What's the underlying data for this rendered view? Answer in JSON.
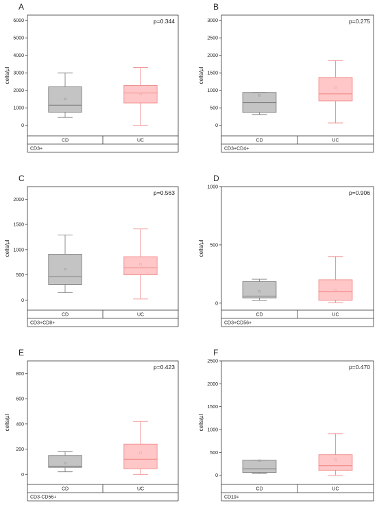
{
  "chart_data": [
    {
      "panel": "A",
      "type": "box",
      "ylabel": "cells/µl",
      "ylim": [
        -600,
        6300
      ],
      "yticks": [
        0,
        1000,
        2000,
        3000,
        4000,
        5000,
        6000
      ],
      "pvalue": "p=0.344",
      "group": "CD3+",
      "categories": [
        "CD",
        "UC"
      ],
      "boxes": [
        {
          "category": "CD",
          "min": 450,
          "q1": 750,
          "median": 1150,
          "q3": 2200,
          "max": 3000,
          "mean": 1500
        },
        {
          "category": "UC",
          "min": 0,
          "q1": 1280,
          "median": 1850,
          "q3": 2280,
          "max": 3300,
          "mean": 1800
        }
      ]
    },
    {
      "panel": "B",
      "type": "box",
      "ylabel": "cells/µl",
      "ylim": [
        -300,
        3150
      ],
      "yticks": [
        0,
        500,
        1000,
        1500,
        2000,
        2500,
        3000
      ],
      "pvalue": "p=0.275",
      "group": "CD3+CD4+",
      "categories": [
        "CD",
        "UC"
      ],
      "boxes": [
        {
          "category": "CD",
          "min": 310,
          "q1": 370,
          "median": 650,
          "q3": 940,
          "max": 940,
          "mean": 860
        },
        {
          "category": "UC",
          "min": 70,
          "q1": 700,
          "median": 900,
          "q3": 1370,
          "max": 1850,
          "mean": 1080
        }
      ]
    },
    {
      "panel": "C",
      "type": "box",
      "ylabel": "cells/µl",
      "ylim": [
        -200,
        2250
      ],
      "yticks": [
        0,
        500,
        1000,
        1500,
        2000
      ],
      "pvalue": "p=0.563",
      "group": "CD3+CD8+",
      "categories": [
        "CD",
        "UC"
      ],
      "boxes": [
        {
          "category": "CD",
          "min": 150,
          "q1": 310,
          "median": 460,
          "q3": 910,
          "max": 1290,
          "mean": 610
        },
        {
          "category": "UC",
          "min": 20,
          "q1": 500,
          "median": 640,
          "q3": 860,
          "max": 1410,
          "mean": 710
        }
      ]
    },
    {
      "panel": "D",
      "type": "box",
      "ylabel": "cells/µl",
      "ylim": [
        -60,
        1000
      ],
      "yticks": [
        0,
        500,
        1000
      ],
      "pvalue": "p=0.906",
      "group": "CD3+CD56+",
      "categories": [
        "CD",
        "UC"
      ],
      "boxes": [
        {
          "category": "CD",
          "min": 25,
          "q1": 45,
          "median": 60,
          "q3": 185,
          "max": 205,
          "mean": 100
        },
        {
          "category": "UC",
          "min": 5,
          "q1": 25,
          "median": 100,
          "q3": 200,
          "max": 400,
          "mean": 110
        }
      ]
    },
    {
      "panel": "E",
      "type": "box",
      "ylabel": "cells/µl",
      "ylim": [
        -80,
        900
      ],
      "yticks": [
        0,
        200,
        400,
        600,
        800
      ],
      "pvalue": "p=0.423",
      "group": "CD3-CD56+",
      "categories": [
        "CD",
        "UC"
      ],
      "boxes": [
        {
          "category": "CD",
          "min": 20,
          "q1": 55,
          "median": 65,
          "q3": 150,
          "max": 180,
          "mean": 90
        },
        {
          "category": "UC",
          "min": 0,
          "q1": 45,
          "median": 120,
          "q3": 240,
          "max": 420,
          "mean": 170
        }
      ]
    },
    {
      "panel": "F",
      "type": "box",
      "ylabel": "cells/µl",
      "ylim": [
        -200,
        2500
      ],
      "yticks": [
        0,
        500,
        1000,
        1500,
        2000,
        2500
      ],
      "pvalue": "p=0.470",
      "group": "CD19+",
      "categories": [
        "CD",
        "UC"
      ],
      "boxes": [
        {
          "category": "CD",
          "min": 40,
          "q1": 60,
          "median": 140,
          "q3": 330,
          "max": 330,
          "mean": 320
        },
        {
          "category": "UC",
          "min": 0,
          "q1": 110,
          "median": 210,
          "q3": 450,
          "max": 910,
          "mean": 340
        }
      ]
    }
  ],
  "style": {
    "CD_fill": "#c4c4c4",
    "CD_stroke": "#7f7f7f",
    "CD_mean": "#9a9a9a",
    "UC_fill": "#ffc7c7",
    "UC_stroke": "#f08a8a",
    "UC_mean": "#f4a3a3"
  }
}
